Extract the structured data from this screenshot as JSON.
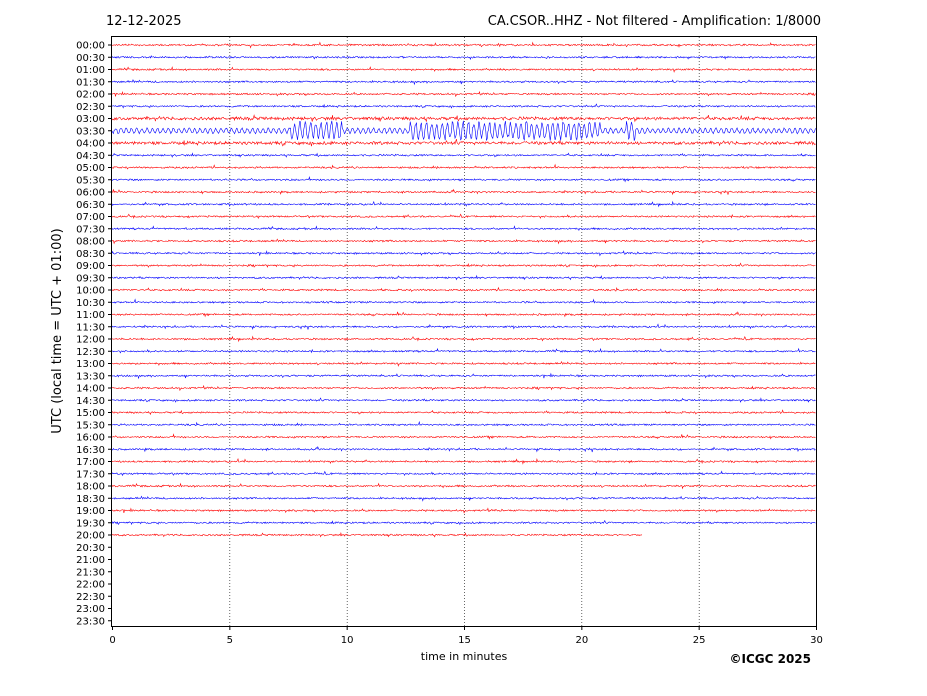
{
  "header": {
    "date": "12-12-2025",
    "title": "CA.CSOR..HHZ - Not filtered - Amplification: 1/8000"
  },
  "copyright": "©ICGC 2025",
  "chart_data": {
    "type": "line",
    "title": "CA.CSOR..HHZ - Not filtered - Amplification: 1/8000",
    "xlabel": "time in minutes",
    "ylabel": "UTC (local time = UTC + 01:00)",
    "xlim": [
      0,
      30
    ],
    "x_ticks": [
      "0",
      "5",
      "10",
      "15",
      "20",
      "25",
      "30"
    ],
    "x_grid": "dotted vertical lines at each major tick",
    "row_labels": [
      "00:00",
      "00:30",
      "01:00",
      "01:30",
      "02:00",
      "02:30",
      "03:00",
      "03:30",
      "04:00",
      "04:30",
      "05:00",
      "05:30",
      "06:00",
      "06:30",
      "07:00",
      "07:30",
      "08:00",
      "08:30",
      "09:00",
      "09:30",
      "10:00",
      "10:30",
      "11:00",
      "11:30",
      "12:00",
      "12:30",
      "13:00",
      "13:30",
      "14:00",
      "14:30",
      "15:00",
      "15:30",
      "16:00",
      "16:30",
      "17:00",
      "17:30",
      "18:00",
      "18:30",
      "19:00",
      "19:30",
      "20:00",
      "20:30",
      "21:00",
      "21:30",
      "22:00",
      "22:30",
      "23:00",
      "23:30"
    ],
    "row_colors": [
      "#ff0000",
      "#0000ff"
    ],
    "recorded_rows": 41,
    "last_row_end_minute": 22.6,
    "event_row": "03:30",
    "event_bursts_minutes": [
      {
        "start": 7.6,
        "end": 9.8
      },
      {
        "start": 12.7,
        "end": 15.2
      },
      {
        "start": 15.2,
        "end": 20.8
      },
      {
        "start": 21.9,
        "end": 22.3
      }
    ]
  }
}
